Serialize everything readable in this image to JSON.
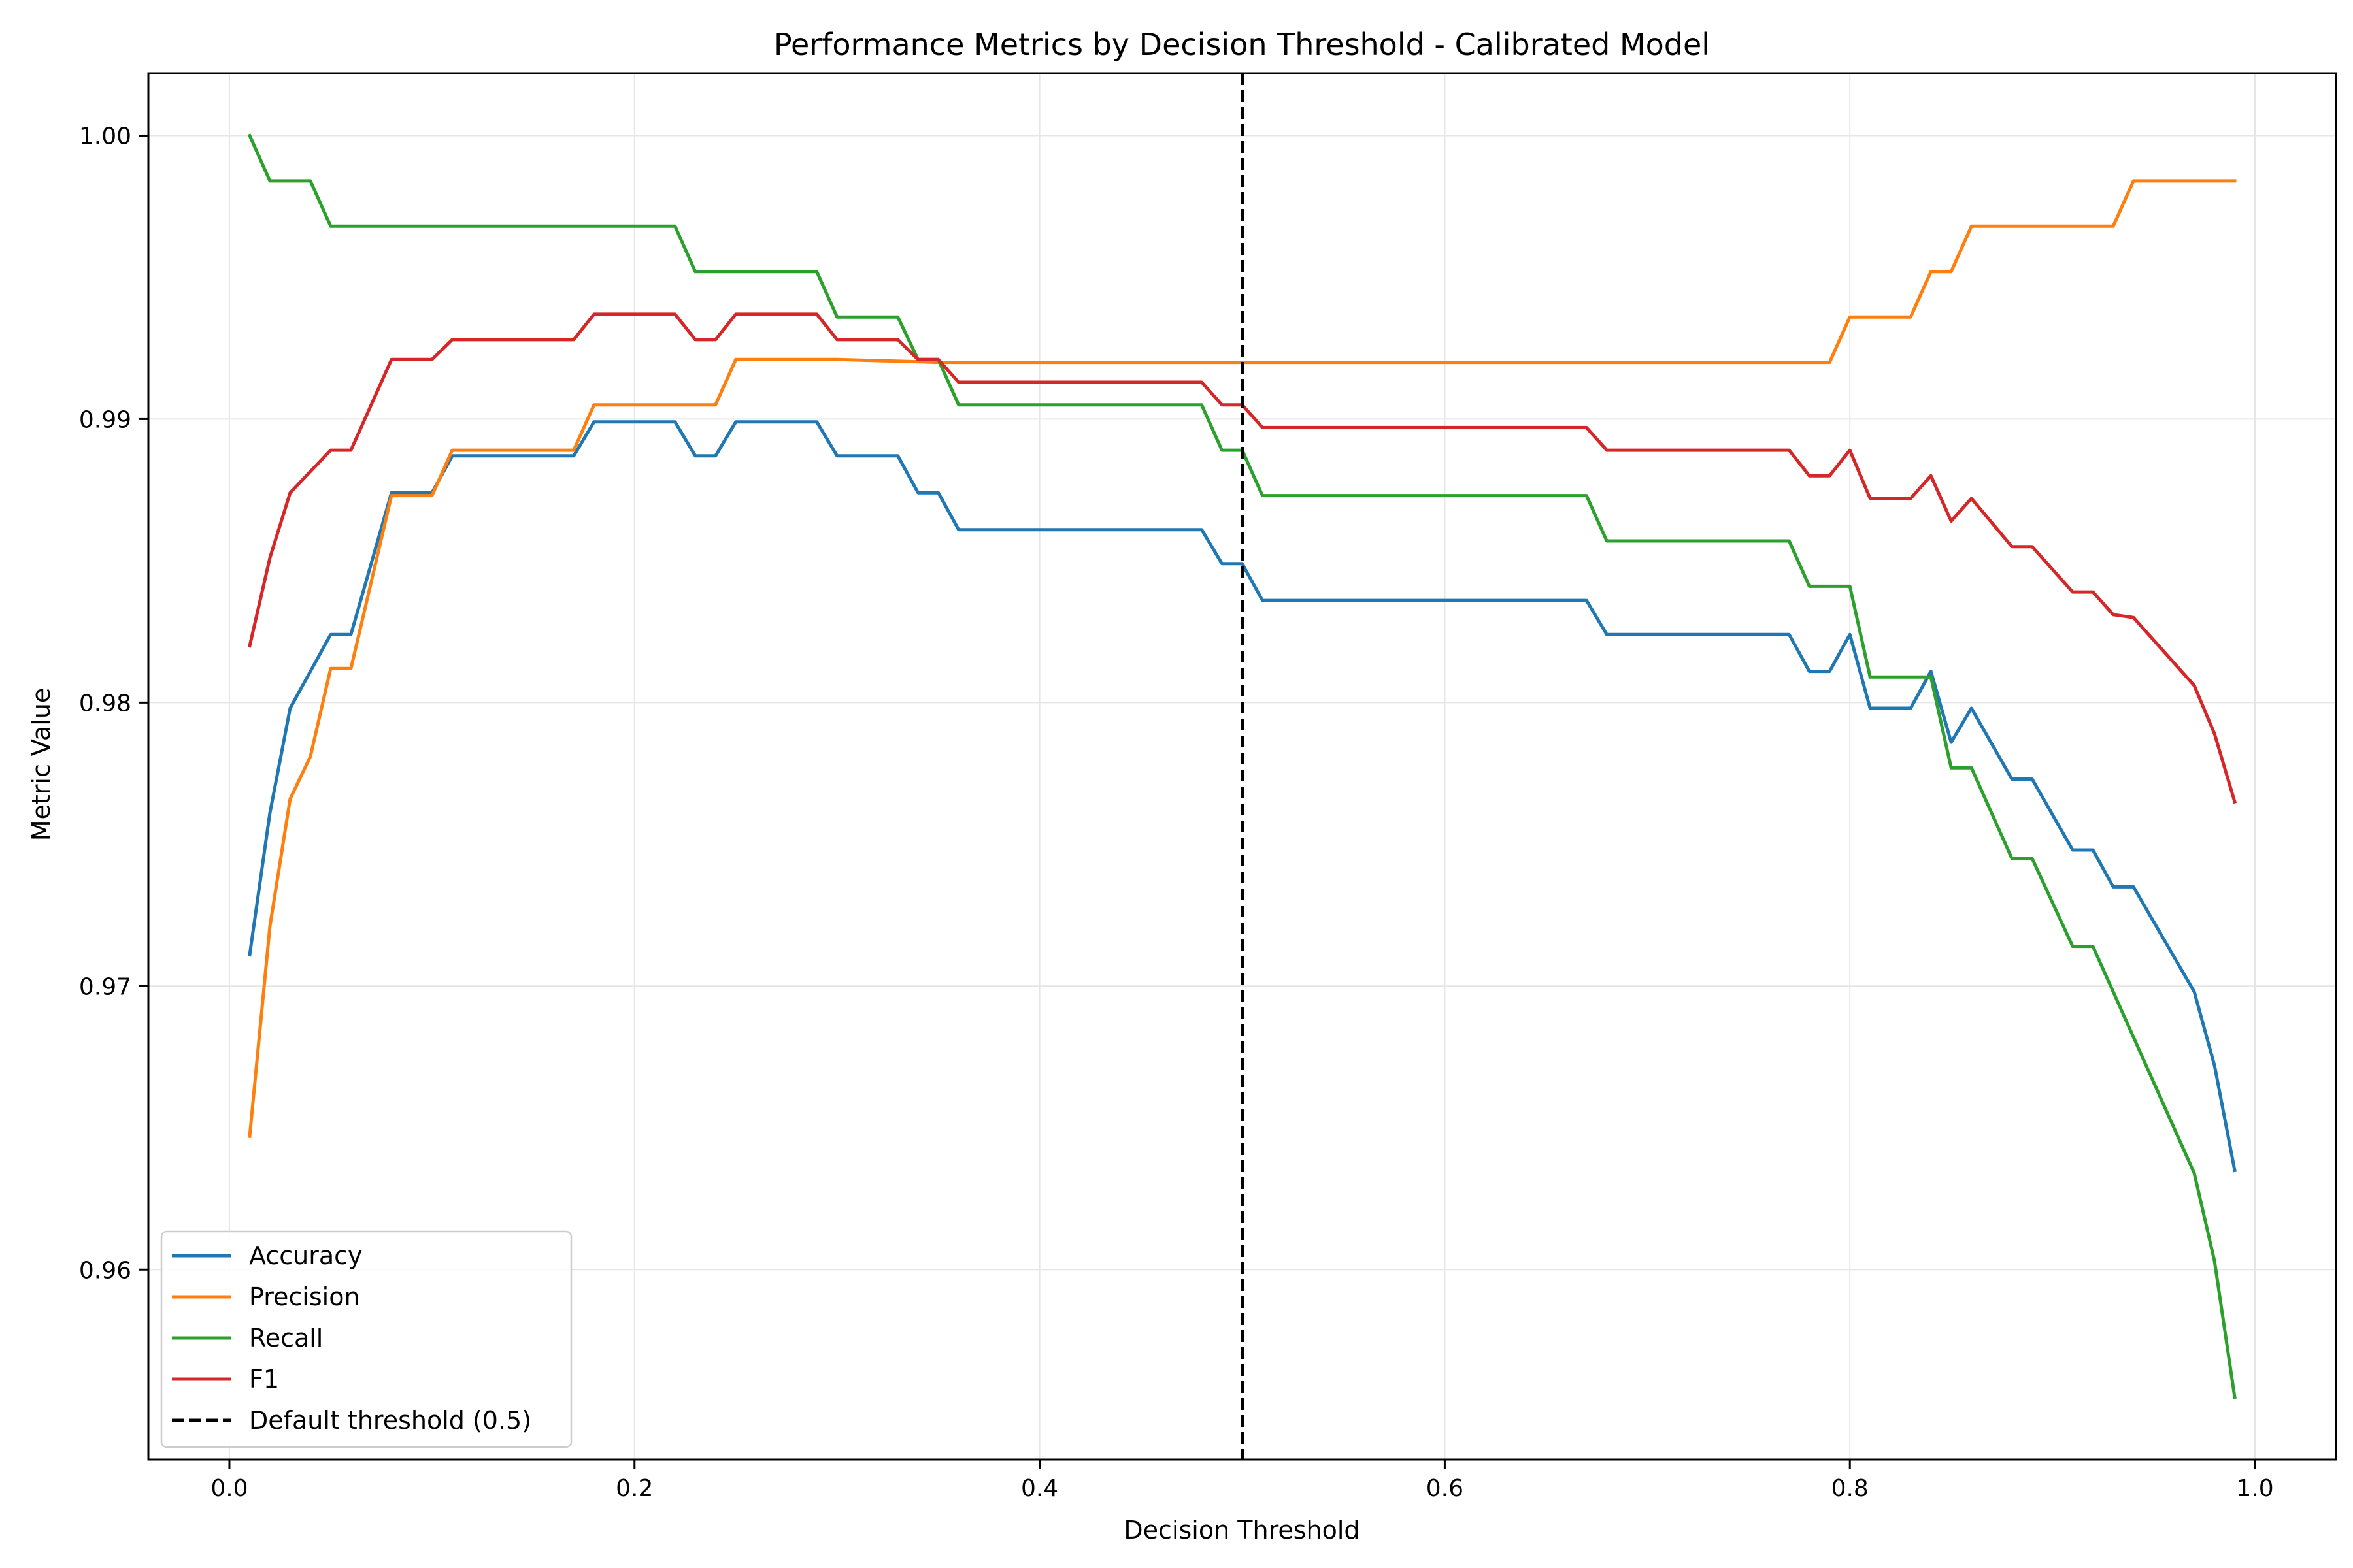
{
  "chart_data": {
    "type": "line",
    "title": "Performance Metrics by Decision Threshold - Calibrated Model",
    "xlabel": "Decision Threshold",
    "ylabel": "Metric Value",
    "xlim": [
      -0.04,
      1.04
    ],
    "ylim": [
      0.9533,
      1.0022
    ],
    "xticks": [
      0.0,
      0.2,
      0.4,
      0.6,
      0.8,
      1.0
    ],
    "xtick_labels": [
      "0.0",
      "0.2",
      "0.4",
      "0.6",
      "0.8",
      "1.0"
    ],
    "yticks": [
      0.96,
      0.97,
      0.98,
      0.99,
      1.0
    ],
    "ytick_labels": [
      "0.96",
      "0.97",
      "0.98",
      "0.99",
      "1.00"
    ],
    "grid": true,
    "legend_position": "lower-left",
    "series": [
      {
        "name": "Accuracy",
        "color": "#1f77b4",
        "points": [
          [
            0.01,
            0.9711
          ],
          [
            0.02,
            0.9761
          ],
          [
            0.03,
            0.9798
          ],
          [
            0.05,
            0.9824
          ],
          [
            0.06,
            0.9824
          ],
          [
            0.08,
            0.9874
          ],
          [
            0.1,
            0.9874
          ],
          [
            0.11,
            0.9887
          ],
          [
            0.17,
            0.9887
          ],
          [
            0.18,
            0.9899
          ],
          [
            0.22,
            0.9899
          ],
          [
            0.23,
            0.9887
          ],
          [
            0.24,
            0.9887
          ],
          [
            0.25,
            0.9899
          ],
          [
            0.29,
            0.9899
          ],
          [
            0.3,
            0.9887
          ],
          [
            0.33,
            0.9887
          ],
          [
            0.34,
            0.9874
          ],
          [
            0.35,
            0.9874
          ],
          [
            0.36,
            0.9861
          ],
          [
            0.48,
            0.9861
          ],
          [
            0.49,
            0.9849
          ],
          [
            0.5,
            0.9849
          ],
          [
            0.51,
            0.9836
          ],
          [
            0.67,
            0.9836
          ],
          [
            0.68,
            0.9824
          ],
          [
            0.77,
            0.9824
          ],
          [
            0.78,
            0.9811
          ],
          [
            0.79,
            0.9811
          ],
          [
            0.8,
            0.9824
          ],
          [
            0.81,
            0.9798
          ],
          [
            0.83,
            0.9798
          ],
          [
            0.84,
            0.9811
          ],
          [
            0.85,
            0.9786
          ],
          [
            0.86,
            0.9798
          ],
          [
            0.88,
            0.9773
          ],
          [
            0.89,
            0.9773
          ],
          [
            0.91,
            0.9748
          ],
          [
            0.92,
            0.9748
          ],
          [
            0.93,
            0.9735
          ],
          [
            0.94,
            0.9735
          ],
          [
            0.97,
            0.9698
          ],
          [
            0.98,
            0.9672
          ],
          [
            0.99,
            0.9635
          ]
        ]
      },
      {
        "name": "Precision",
        "color": "#ff7f0e",
        "points": [
          [
            0.01,
            0.9647
          ],
          [
            0.02,
            0.9721
          ],
          [
            0.03,
            0.9766
          ],
          [
            0.04,
            0.9781
          ],
          [
            0.05,
            0.9812
          ],
          [
            0.06,
            0.9812
          ],
          [
            0.08,
            0.9873
          ],
          [
            0.1,
            0.9873
          ],
          [
            0.11,
            0.9889
          ],
          [
            0.17,
            0.9889
          ],
          [
            0.18,
            0.9905
          ],
          [
            0.24,
            0.9905
          ],
          [
            0.25,
            0.9921
          ],
          [
            0.3,
            0.9921
          ],
          [
            0.35,
            0.992
          ],
          [
            0.48,
            0.992
          ],
          [
            0.51,
            0.992
          ],
          [
            0.67,
            0.992
          ],
          [
            0.79,
            0.992
          ],
          [
            0.8,
            0.9936
          ],
          [
            0.83,
            0.9936
          ],
          [
            0.84,
            0.9952
          ],
          [
            0.85,
            0.9952
          ],
          [
            0.86,
            0.9968
          ],
          [
            0.93,
            0.9968
          ],
          [
            0.94,
            0.9984
          ],
          [
            0.99,
            0.9984
          ]
        ]
      },
      {
        "name": "Recall",
        "color": "#2ca02c",
        "points": [
          [
            0.01,
            1.0
          ],
          [
            0.02,
            0.9984
          ],
          [
            0.04,
            0.9984
          ],
          [
            0.05,
            0.9968
          ],
          [
            0.22,
            0.9968
          ],
          [
            0.23,
            0.9952
          ],
          [
            0.29,
            0.9952
          ],
          [
            0.3,
            0.9936
          ],
          [
            0.33,
            0.9936
          ],
          [
            0.34,
            0.9921
          ],
          [
            0.35,
            0.9921
          ],
          [
            0.36,
            0.9905
          ],
          [
            0.48,
            0.9905
          ],
          [
            0.49,
            0.9889
          ],
          [
            0.5,
            0.9889
          ],
          [
            0.51,
            0.9873
          ],
          [
            0.67,
            0.9873
          ],
          [
            0.68,
            0.9857
          ],
          [
            0.77,
            0.9857
          ],
          [
            0.78,
            0.9841
          ],
          [
            0.8,
            0.9841
          ],
          [
            0.81,
            0.9809
          ],
          [
            0.84,
            0.9809
          ],
          [
            0.85,
            0.9777
          ],
          [
            0.86,
            0.9777
          ],
          [
            0.88,
            0.9745
          ],
          [
            0.89,
            0.9745
          ],
          [
            0.91,
            0.9714
          ],
          [
            0.92,
            0.9714
          ],
          [
            0.97,
            0.9634
          ],
          [
            0.98,
            0.9603
          ],
          [
            0.99,
            0.9555
          ]
        ]
      },
      {
        "name": "F1",
        "color": "#d62728",
        "points": [
          [
            0.01,
            0.982
          ],
          [
            0.02,
            0.9851
          ],
          [
            0.03,
            0.9874
          ],
          [
            0.05,
            0.9889
          ],
          [
            0.06,
            0.9889
          ],
          [
            0.08,
            0.9921
          ],
          [
            0.1,
            0.9921
          ],
          [
            0.11,
            0.9928
          ],
          [
            0.17,
            0.9928
          ],
          [
            0.18,
            0.9937
          ],
          [
            0.22,
            0.9937
          ],
          [
            0.23,
            0.9928
          ],
          [
            0.24,
            0.9928
          ],
          [
            0.25,
            0.9937
          ],
          [
            0.29,
            0.9937
          ],
          [
            0.3,
            0.9928
          ],
          [
            0.33,
            0.9928
          ],
          [
            0.34,
            0.9921
          ],
          [
            0.35,
            0.9921
          ],
          [
            0.36,
            0.9913
          ],
          [
            0.48,
            0.9913
          ],
          [
            0.49,
            0.9905
          ],
          [
            0.5,
            0.9905
          ],
          [
            0.51,
            0.9897
          ],
          [
            0.67,
            0.9897
          ],
          [
            0.68,
            0.9889
          ],
          [
            0.77,
            0.9889
          ],
          [
            0.78,
            0.988
          ],
          [
            0.79,
            0.988
          ],
          [
            0.8,
            0.9889
          ],
          [
            0.81,
            0.9872
          ],
          [
            0.83,
            0.9872
          ],
          [
            0.84,
            0.988
          ],
          [
            0.85,
            0.9864
          ],
          [
            0.86,
            0.9872
          ],
          [
            0.88,
            0.9855
          ],
          [
            0.89,
            0.9855
          ],
          [
            0.91,
            0.9839
          ],
          [
            0.92,
            0.9839
          ],
          [
            0.93,
            0.9831
          ],
          [
            0.94,
            0.983
          ],
          [
            0.97,
            0.9806
          ],
          [
            0.98,
            0.9789
          ],
          [
            0.99,
            0.9765
          ]
        ]
      }
    ],
    "reference_lines": [
      {
        "name": "Default threshold (0.5)",
        "x": 0.5,
        "color": "#000000",
        "style": "dashed"
      }
    ]
  }
}
